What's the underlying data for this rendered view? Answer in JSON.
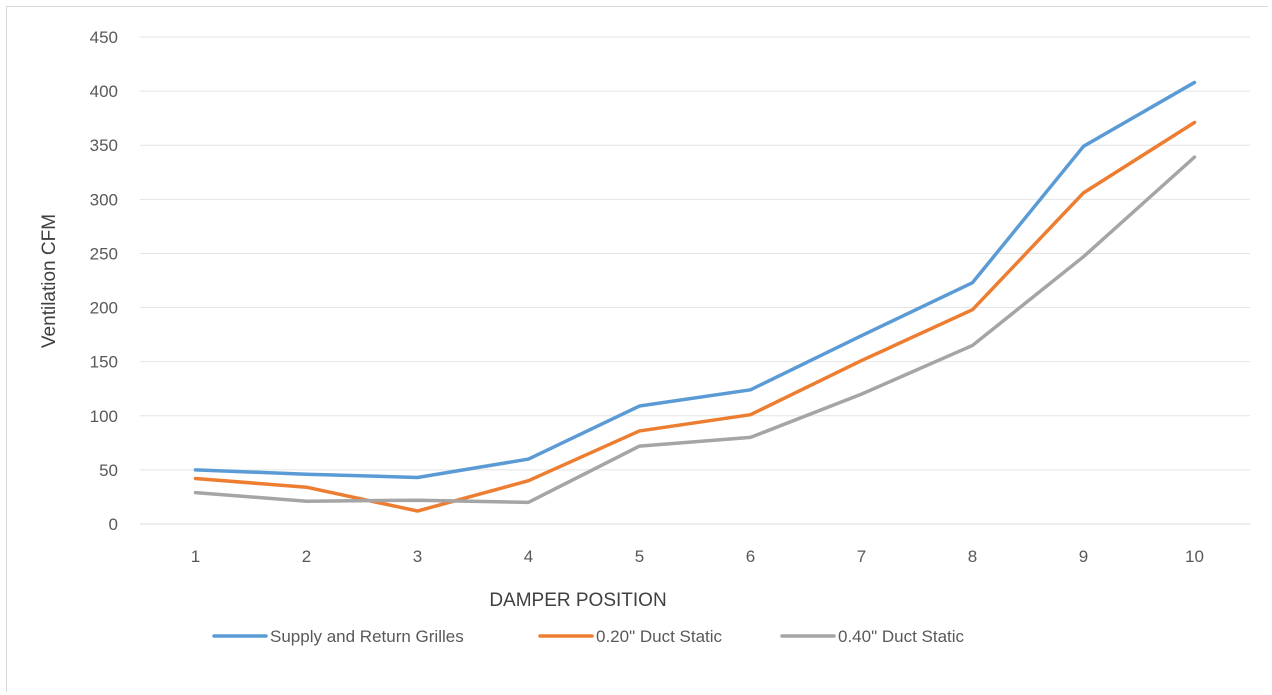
{
  "chart_data": {
    "type": "line",
    "title": "",
    "xlabel": "DAMPER POSITION",
    "ylabel": "Ventilation CFM",
    "categories": [
      "1",
      "2",
      "3",
      "4",
      "5",
      "6",
      "7",
      "8",
      "9",
      "10"
    ],
    "ylim": [
      0,
      450
    ],
    "yticks": [
      "0",
      "50",
      "100",
      "150",
      "200",
      "250",
      "300",
      "350",
      "400",
      "450"
    ],
    "grid": "horizontal",
    "legend_position": "bottom",
    "series": [
      {
        "name": "Supply and Return Grilles",
        "color": "#5b9bd5",
        "values": [
          50,
          46,
          43,
          60,
          109,
          124,
          174,
          223,
          349,
          408
        ]
      },
      {
        "name": "0.20\" Duct Static",
        "color": "#ed7d31",
        "values": [
          42,
          34,
          12,
          40,
          86,
          101,
          151,
          198,
          306,
          371
        ]
      },
      {
        "name": "0.40\" Duct Static",
        "color": "#a5a5a5",
        "values": [
          29,
          21,
          22,
          20,
          72,
          80,
          120,
          165,
          247,
          339
        ]
      }
    ]
  }
}
